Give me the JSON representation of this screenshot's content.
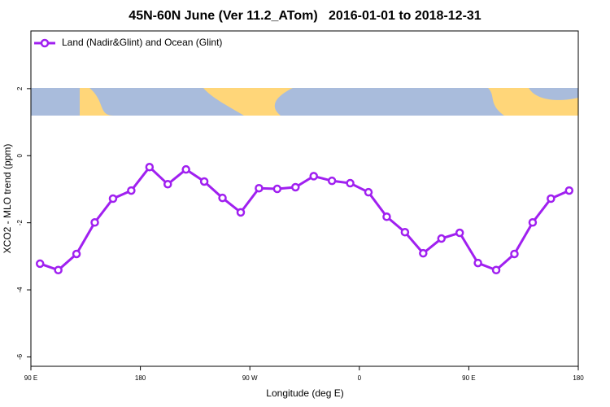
{
  "chart_data": {
    "type": "line",
    "title": "45N-60N June (Ver 11.2_ATom)   2016-01-01 to 2018-12-31",
    "x_label": "Longitude (deg E)",
    "y_label": "XCO2 - MLO trend (ppm)",
    "x": [
      97.5,
      112.5,
      127.5,
      142.5,
      157.5,
      172.5,
      187.5,
      202.5,
      217.5,
      232.5,
      247.5,
      262.5,
      277.5,
      292.5,
      307.5,
      322.5,
      337.5,
      352.5,
      367.5,
      382.5,
      397.5,
      412.5,
      427.5,
      442.5,
      457.5,
      472.5,
      487.5,
      502.5,
      517.5,
      532.5
    ],
    "series": [
      {
        "name": "Land (Nadir&Glint) and Ocean (Glint)",
        "color": "#a020f0",
        "values": [
          -3.22,
          -3.41,
          -2.93,
          -1.99,
          -1.28,
          -1.04,
          -0.34,
          -0.85,
          -0.41,
          -0.77,
          -1.26,
          -1.69,
          -0.97,
          -0.99,
          -0.94,
          -0.61,
          -0.75,
          -0.82,
          -1.09,
          -1.82,
          -2.28,
          -2.91,
          -2.47,
          -2.3,
          -3.2,
          -3.41,
          -2.93,
          -1.99,
          -1.28,
          -1.04
        ]
      }
    ],
    "xlim": [
      90,
      540
    ],
    "xticks": [
      {
        "value": 90,
        "label": "90 E"
      },
      {
        "value": 180,
        "label": "180"
      },
      {
        "value": 270,
        "label": "90 W"
      },
      {
        "value": 360,
        "label": "0"
      },
      {
        "value": 450,
        "label": "90 E"
      },
      {
        "value": 540,
        "label": "180"
      }
    ],
    "ylim": [
      -6.28,
      3.72
    ],
    "yticks": [
      -6,
      -4,
      -2,
      0,
      2
    ],
    "legend": "top-left"
  }
}
